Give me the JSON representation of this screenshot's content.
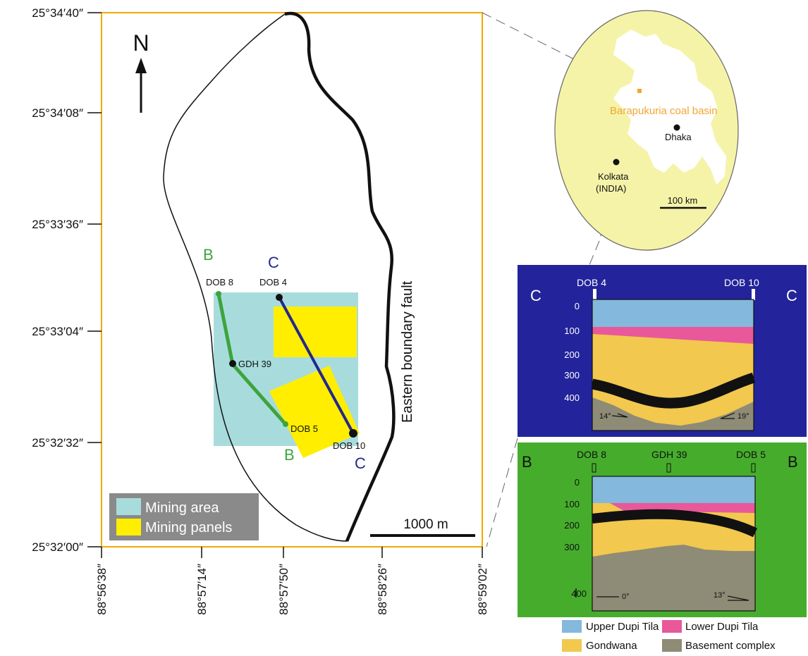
{
  "colors": {
    "frame": "#f2a900",
    "mining_area": "#a8dcdc",
    "mining_panels": "#ffee00",
    "line_b": "#3da43d",
    "line_c": "#25288a",
    "cs_c_bg": "#23239b",
    "cs_b_bg": "#46ad2c",
    "upper_dupi_tila": "#84b8dc",
    "lower_dupi_tila": "#e8589a",
    "gondwana": "#f2c84e",
    "basement": "#8e8b76",
    "inset_fill": "#f5f3a8",
    "basin_label": "#f2a530",
    "legend_box": "#8a8a8a"
  },
  "map": {
    "lat_labels": [
      "25°34′40″",
      "25°34′08″",
      "25°33′36″",
      "25°33′04″",
      "25°32′32″",
      "25°32′00″"
    ],
    "lon_labels": [
      "88°56′38″",
      "88°57′14″",
      "88°57′50″",
      "88°58′26″",
      "88°59′02″"
    ],
    "north": "N",
    "fault_label": "Eastern boundary fault",
    "scale_label": "1000 m",
    "section_b": {
      "letter_start": "B",
      "letter_end": "B"
    },
    "section_c": {
      "letter_start": "C",
      "letter_end": "C"
    },
    "boreholes": [
      "DOB 8",
      "DOB 4",
      "GDH 39",
      "DOB 5",
      "DOB 10"
    ],
    "legend": {
      "mining_area": "Mining area",
      "mining_panels": "Mining panels"
    }
  },
  "inset": {
    "basin": "Barapukuria coal basin",
    "dhaka": "Dhaka",
    "kolkata_line1": "Kolkata",
    "kolkata_line2": "(INDIA)",
    "scale": "100 km"
  },
  "section_c": {
    "left_letter": "C",
    "right_letter": "C",
    "well_left": "DOB 4",
    "well_right": "DOB 10",
    "depths": [
      "0",
      "100",
      "200",
      "300",
      "400"
    ],
    "dip_left": "14°",
    "dip_right": "19°"
  },
  "section_b": {
    "left_letter": "B",
    "right_letter": "B",
    "well_left": "DOB 8",
    "well_mid": "GDH 39",
    "well_right": "DOB 5",
    "depths": [
      "0",
      "100",
      "200",
      "300",
      "400"
    ],
    "dip_left": "0°",
    "dip_right": "13°"
  },
  "legend": {
    "upper_dupi_tila": "Upper Dupi Tila",
    "lower_dupi_tila": "Lower Dupi Tila",
    "gondwana": "Gondwana",
    "basement": "Basement complex"
  }
}
